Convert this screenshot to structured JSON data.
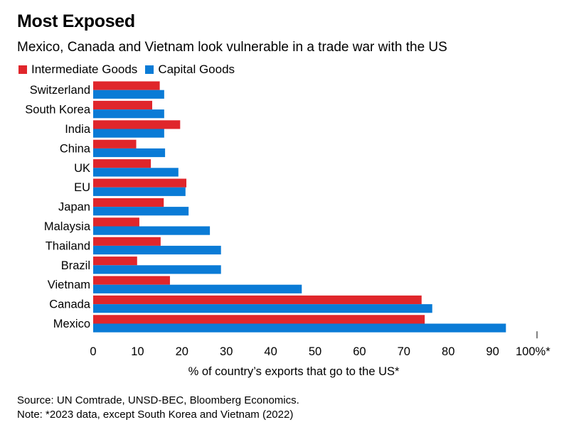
{
  "title": "Most Exposed",
  "subtitle": "Mexico, Canada and Vietnam look vulnerable in a trade war with the US",
  "legend": [
    {
      "label": "Intermediate Goods",
      "color": "#e0262b"
    },
    {
      "label": "Capital Goods",
      "color": "#0a7bd6"
    }
  ],
  "source": {
    "line1": "Source: UN Comtrade, UNSD-BEC, Bloomberg Economics.",
    "line2": "Note: *2023 data, except South Korea and Vietnam (2022)"
  },
  "chart_data": {
    "type": "bar",
    "orientation": "horizontal",
    "categories": [
      "Switzerland",
      "South Korea",
      "India",
      "China",
      "UK",
      "EU",
      "Japan",
      "Malaysia",
      "Thailand",
      "Brazil",
      "Vietnam",
      "Canada",
      "Mexico"
    ],
    "series": [
      {
        "name": "Intermediate Goods",
        "color": "#e0262b",
        "values": [
          15,
          13.3,
          19.6,
          9.7,
          13,
          21,
          15.9,
          10.4,
          15.2,
          9.9,
          17.3,
          74,
          74.7
        ]
      },
      {
        "name": "Capital Goods",
        "color": "#0a7bd6",
        "values": [
          16,
          16,
          16,
          16.2,
          19.2,
          20.8,
          21.5,
          26.3,
          28.8,
          28.8,
          47,
          76.4,
          93
        ]
      }
    ],
    "xlabel": "% of country’s exports that go to the US*",
    "ylabel": "",
    "xlim": [
      0,
      100
    ],
    "xticks": [
      0,
      10,
      20,
      30,
      40,
      50,
      60,
      70,
      80,
      90,
      100
    ],
    "xtick_labels": [
      "0",
      "10",
      "20",
      "30",
      "40",
      "50",
      "60",
      "70",
      "80",
      "90",
      "100%*"
    ],
    "grid": false,
    "legend_position": "top-left"
  }
}
